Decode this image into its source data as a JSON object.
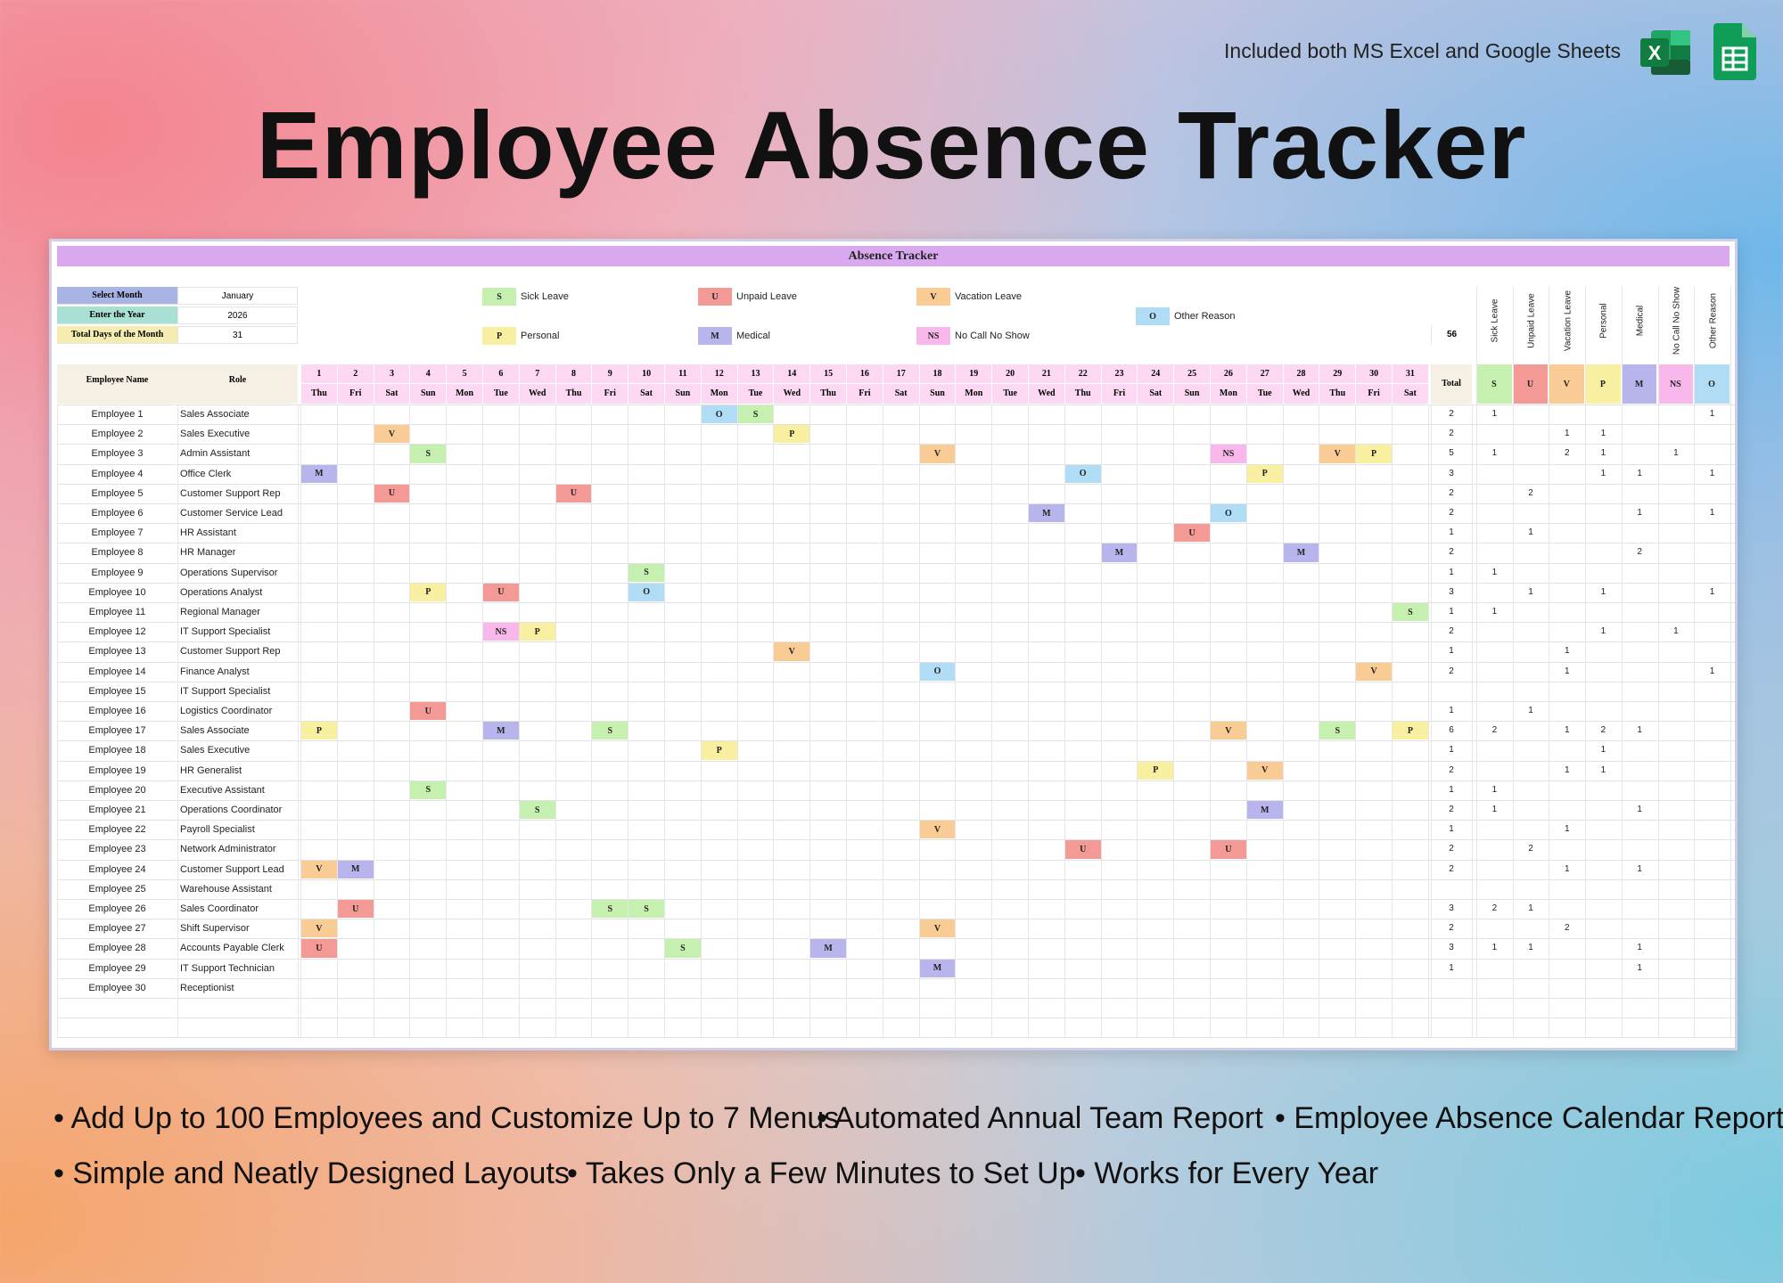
{
  "header": {
    "note": "Included both MS Excel and Google Sheets",
    "title": "Employee Absence Tracker",
    "excel_icon": "excel-icon",
    "sheets_icon": "google-sheets-icon"
  },
  "sheet": {
    "title": "Absence Tracker",
    "controls": [
      {
        "label": "Select Month",
        "value": "January",
        "color": "#a8b4e4"
      },
      {
        "label": "Enter the Year",
        "value": "2026",
        "color": "#a8e0d4"
      },
      {
        "label": "Total Days of the Month",
        "value": "31",
        "color": "#f4ecb0"
      }
    ],
    "legend": [
      {
        "code": "S",
        "label": "Sick Leave",
        "color": "#c6f0b0"
      },
      {
        "code": "U",
        "label": "Unpaid Leave",
        "color": "#f49a96"
      },
      {
        "code": "V",
        "label": "Vacation Leave",
        "color": "#f8cc94"
      },
      {
        "code": "O",
        "label": "Other Reason",
        "color": "#b0dcf6"
      },
      {
        "code": "P",
        "label": "Personal",
        "color": "#f8f0a0"
      },
      {
        "code": "M",
        "label": "Medical",
        "color": "#b8b4ec"
      },
      {
        "code": "NS",
        "label": "No Call No Show",
        "color": "#f8b8ec"
      }
    ],
    "grand_total": "56",
    "col_headers": {
      "name": "Employee Name",
      "role": "Role",
      "total": "Total"
    },
    "days": [
      "1",
      "2",
      "3",
      "4",
      "5",
      "6",
      "7",
      "8",
      "9",
      "10",
      "11",
      "12",
      "13",
      "14",
      "15",
      "16",
      "17",
      "18",
      "19",
      "20",
      "21",
      "22",
      "23",
      "24",
      "25",
      "26",
      "27",
      "28",
      "29",
      "30",
      "31"
    ],
    "weekdays": [
      "Thu",
      "Fri",
      "Sat",
      "Sun",
      "Mon",
      "Tue",
      "Wed",
      "Thu",
      "Fri",
      "Sat",
      "Sun",
      "Mon",
      "Tue",
      "Wed",
      "Thu",
      "Fri",
      "Sat",
      "Sun",
      "Mon",
      "Tue",
      "Wed",
      "Thu",
      "Fri",
      "Sat",
      "Sun",
      "Mon",
      "Tue",
      "Wed",
      "Thu",
      "Fri",
      "Sat"
    ],
    "summary_headers": [
      "Sick Leave",
      "Unpaid Leave",
      "Vacation Leave",
      "Personal",
      "Medical",
      "No Call No Show",
      "Other Reason"
    ],
    "summary_codes": [
      "S",
      "U",
      "V",
      "P",
      "M",
      "NS",
      "O"
    ],
    "rows": [
      {
        "name": "Employee 1",
        "role": "Sales Associate",
        "marks": [
          [
            12,
            "O"
          ],
          [
            13,
            "S"
          ]
        ],
        "total": "2",
        "summary": [
          "1",
          "",
          "",
          "",
          "",
          "",
          "1"
        ]
      },
      {
        "name": "Employee 2",
        "role": "Sales Executive",
        "marks": [
          [
            3,
            "V"
          ],
          [
            14,
            "P"
          ]
        ],
        "total": "2",
        "summary": [
          "",
          "",
          "1",
          "1",
          "",
          "",
          ""
        ]
      },
      {
        "name": "Employee 3",
        "role": "Admin Assistant",
        "marks": [
          [
            4,
            "S"
          ],
          [
            18,
            "V"
          ],
          [
            26,
            "NS"
          ],
          [
            29,
            "V"
          ],
          [
            30,
            "P"
          ]
        ],
        "total": "5",
        "summary": [
          "1",
          "",
          "2",
          "1",
          "",
          "1",
          ""
        ]
      },
      {
        "name": "Employee 4",
        "role": "Office Clerk",
        "marks": [
          [
            1,
            "M"
          ],
          [
            22,
            "O"
          ],
          [
            27,
            "P"
          ]
        ],
        "total": "3",
        "summary": [
          "",
          "",
          "",
          "1",
          "1",
          "",
          "1"
        ]
      },
      {
        "name": "Employee 5",
        "role": "Customer Support Rep",
        "marks": [
          [
            3,
            "U"
          ],
          [
            8,
            "U"
          ]
        ],
        "total": "2",
        "summary": [
          "",
          "2",
          "",
          "",
          "",
          "",
          ""
        ]
      },
      {
        "name": "Employee 6",
        "role": "Customer Service Lead",
        "marks": [
          [
            21,
            "M"
          ],
          [
            26,
            "O"
          ]
        ],
        "total": "2",
        "summary": [
          "",
          "",
          "",
          "",
          "1",
          "",
          "1"
        ]
      },
      {
        "name": "Employee 7",
        "role": "HR Assistant",
        "marks": [
          [
            25,
            "U"
          ]
        ],
        "total": "1",
        "summary": [
          "",
          "1",
          "",
          "",
          "",
          "",
          ""
        ]
      },
      {
        "name": "Employee 8",
        "role": "HR Manager",
        "marks": [
          [
            23,
            "M"
          ],
          [
            28,
            "M"
          ]
        ],
        "total": "2",
        "summary": [
          "",
          "",
          "",
          "",
          "2",
          "",
          ""
        ]
      },
      {
        "name": "Employee 9",
        "role": "Operations Supervisor",
        "marks": [
          [
            10,
            "S"
          ]
        ],
        "total": "1",
        "summary": [
          "1",
          "",
          "",
          "",
          "",
          "",
          ""
        ]
      },
      {
        "name": "Employee 10",
        "role": "Operations Analyst",
        "marks": [
          [
            4,
            "P"
          ],
          [
            6,
            "U"
          ],
          [
            10,
            "O"
          ]
        ],
        "total": "3",
        "summary": [
          "",
          "1",
          "",
          "1",
          "",
          "",
          "1"
        ]
      },
      {
        "name": "Employee 11",
        "role": "Regional Manager",
        "marks": [
          [
            31,
            "S"
          ]
        ],
        "total": "1",
        "summary": [
          "1",
          "",
          "",
          "",
          "",
          "",
          ""
        ]
      },
      {
        "name": "Employee 12",
        "role": "IT Support Specialist",
        "marks": [
          [
            6,
            "NS"
          ],
          [
            7,
            "P"
          ]
        ],
        "total": "2",
        "summary": [
          "",
          "",
          "",
          "1",
          "",
          "1",
          ""
        ]
      },
      {
        "name": "Employee 13",
        "role": "Customer Support Rep",
        "marks": [
          [
            14,
            "V"
          ]
        ],
        "total": "1",
        "summary": [
          "",
          "",
          "1",
          "",
          "",
          "",
          ""
        ]
      },
      {
        "name": "Employee 14",
        "role": "Finance Analyst",
        "marks": [
          [
            18,
            "O"
          ],
          [
            30,
            "V"
          ]
        ],
        "total": "2",
        "summary": [
          "",
          "",
          "1",
          "",
          "",
          "",
          "1"
        ]
      },
      {
        "name": "Employee 15",
        "role": "IT Support Specialist",
        "marks": [],
        "total": "",
        "summary": [
          "",
          "",
          "",
          "",
          "",
          "",
          ""
        ]
      },
      {
        "name": "Employee 16",
        "role": "Logistics Coordinator",
        "marks": [
          [
            4,
            "U"
          ]
        ],
        "total": "1",
        "summary": [
          "",
          "1",
          "",
          "",
          "",
          "",
          ""
        ]
      },
      {
        "name": "Employee 17",
        "role": "Sales Associate",
        "marks": [
          [
            1,
            "P"
          ],
          [
            6,
            "M"
          ],
          [
            9,
            "S"
          ],
          [
            26,
            "V"
          ],
          [
            29,
            "S"
          ],
          [
            31,
            "P"
          ]
        ],
        "total": "6",
        "summary": [
          "2",
          "",
          "1",
          "2",
          "1",
          "",
          ""
        ]
      },
      {
        "name": "Employee 18",
        "role": "Sales Executive",
        "marks": [
          [
            12,
            "P"
          ]
        ],
        "total": "1",
        "summary": [
          "",
          "",
          "",
          "1",
          "",
          "",
          ""
        ]
      },
      {
        "name": "Employee 19",
        "role": "HR Generalist",
        "marks": [
          [
            24,
            "P"
          ],
          [
            27,
            "V"
          ]
        ],
        "total": "2",
        "summary": [
          "",
          "",
          "1",
          "1",
          "",
          "",
          ""
        ]
      },
      {
        "name": "Employee 20",
        "role": "Executive Assistant",
        "marks": [
          [
            4,
            "S"
          ]
        ],
        "total": "1",
        "summary": [
          "1",
          "",
          "",
          "",
          "",
          "",
          ""
        ]
      },
      {
        "name": "Employee 21",
        "role": "Operations Coordinator",
        "marks": [
          [
            7,
            "S"
          ],
          [
            27,
            "M"
          ]
        ],
        "total": "2",
        "summary": [
          "1",
          "",
          "",
          "",
          "1",
          "",
          ""
        ]
      },
      {
        "name": "Employee 22",
        "role": "Payroll Specialist",
        "marks": [
          [
            18,
            "V"
          ]
        ],
        "total": "1",
        "summary": [
          "",
          "",
          "1",
          "",
          "",
          "",
          ""
        ]
      },
      {
        "name": "Employee 23",
        "role": "Network Administrator",
        "marks": [
          [
            22,
            "U"
          ],
          [
            26,
            "U"
          ]
        ],
        "total": "2",
        "summary": [
          "",
          "2",
          "",
          "",
          "",
          "",
          ""
        ]
      },
      {
        "name": "Employee 24",
        "role": "Customer Support Lead",
        "marks": [
          [
            1,
            "V"
          ],
          [
            2,
            "M"
          ]
        ],
        "total": "2",
        "summary": [
          "",
          "",
          "1",
          "",
          "1",
          "",
          ""
        ]
      },
      {
        "name": "Employee 25",
        "role": "Warehouse Assistant",
        "marks": [],
        "total": "",
        "summary": [
          "",
          "",
          "",
          "",
          "",
          "",
          ""
        ]
      },
      {
        "name": "Employee 26",
        "role": "Sales Coordinator",
        "marks": [
          [
            2,
            "U"
          ],
          [
            9,
            "S"
          ],
          [
            10,
            "S"
          ]
        ],
        "total": "3",
        "summary": [
          "2",
          "1",
          "",
          "",
          "",
          "",
          ""
        ]
      },
      {
        "name": "Employee 27",
        "role": "Shift Supervisor",
        "marks": [
          [
            1,
            "V"
          ],
          [
            18,
            "V"
          ]
        ],
        "total": "2",
        "summary": [
          "",
          "",
          "2",
          "",
          "",
          "",
          ""
        ]
      },
      {
        "name": "Employee 28",
        "role": "Accounts Payable Clerk",
        "marks": [
          [
            1,
            "U"
          ],
          [
            11,
            "S"
          ],
          [
            15,
            "M"
          ]
        ],
        "total": "3",
        "summary": [
          "1",
          "1",
          "",
          "",
          "1",
          "",
          ""
        ]
      },
      {
        "name": "Employee 29",
        "role": "IT Support Technician",
        "marks": [
          [
            18,
            "M"
          ]
        ],
        "total": "1",
        "summary": [
          "",
          "",
          "",
          "",
          "1",
          "",
          ""
        ]
      },
      {
        "name": "Employee 30",
        "role": "Receptionist",
        "marks": [],
        "total": "",
        "summary": [
          "",
          "",
          "",
          "",
          "",
          "",
          ""
        ]
      }
    ]
  },
  "bullets": [
    [
      "• Add Up to 100 Employees and Customize Up to 7 Menus",
      "• Automated Annual Team Report",
      "• Employee Absence Calendar Report"
    ],
    [
      "• Simple and Neatly Designed Layouts",
      "• Takes Only a Few Minutes to Set Up",
      "• Works for Every Year"
    ]
  ]
}
